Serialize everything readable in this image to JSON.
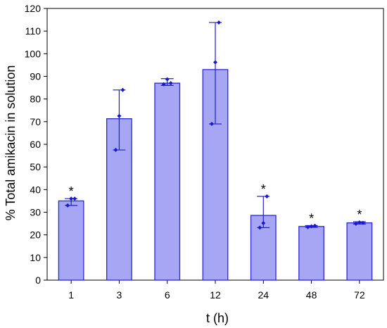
{
  "chart_data": {
    "type": "bar",
    "xlabel": "t (h)",
    "ylabel": "% Total amikacin in solution",
    "ylim": [
      0,
      120
    ],
    "yticks": [
      0,
      10,
      20,
      30,
      40,
      50,
      60,
      70,
      80,
      90,
      100,
      110,
      120
    ],
    "categories": [
      "1",
      "3",
      "6",
      "12",
      "24",
      "48",
      "72"
    ],
    "values": [
      35,
      71.3,
      87,
      93,
      28.6,
      23.7,
      25.3
    ],
    "error_low": [
      33,
      57.5,
      86,
      69,
      23.2,
      23.3,
      24.8
    ],
    "error_high": [
      36,
      84,
      89,
      113.8,
      37,
      24.1,
      25.8
    ],
    "replicates": [
      [
        33,
        36,
        36
      ],
      [
        57.5,
        72.5,
        84
      ],
      [
        86.5,
        88.7,
        87
      ],
      [
        69,
        96.2,
        113.8
      ],
      [
        23.2,
        25.2,
        37
      ],
      [
        23.4,
        23.8,
        24
      ],
      [
        24.9,
        25.5,
        25.3
      ]
    ],
    "significance": [
      "*",
      "",
      "",
      "",
      "*",
      "*",
      "*"
    ],
    "grid": false,
    "colors": {
      "bar_fill": "#a6a6f5",
      "bar_edge": "#2a2ad8",
      "error": "#2020d0",
      "point": "#1a1acc"
    }
  }
}
